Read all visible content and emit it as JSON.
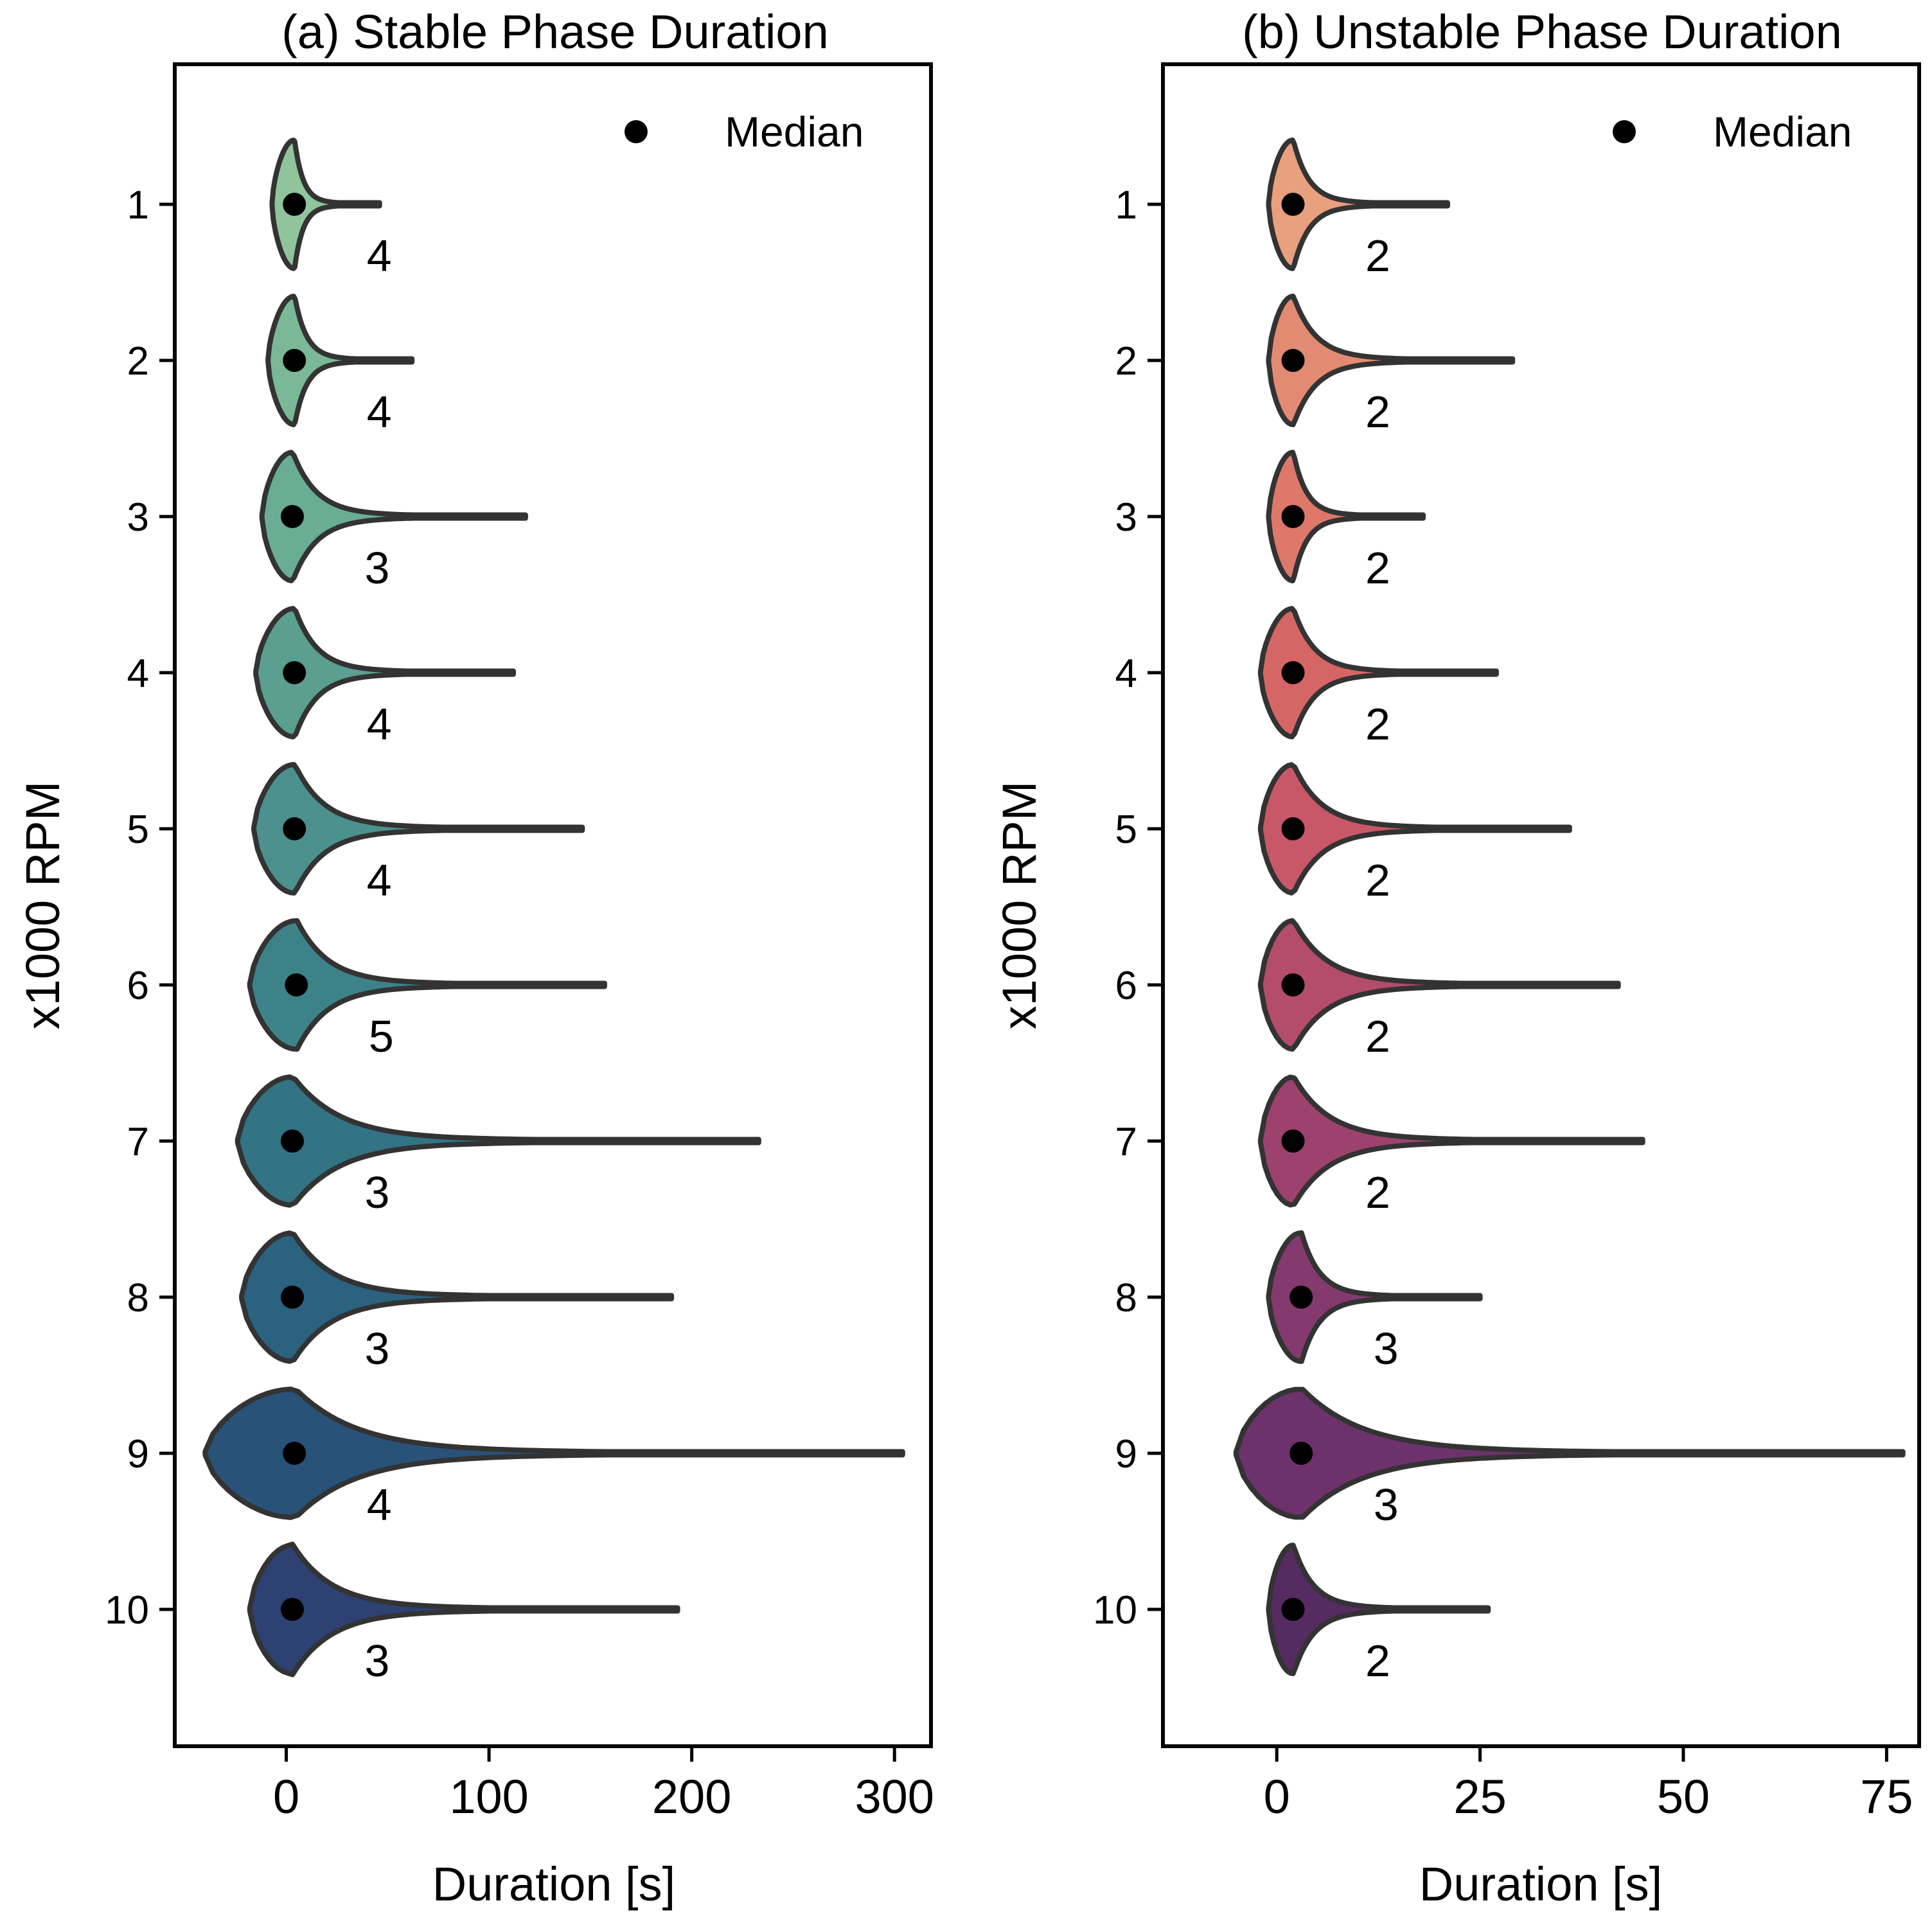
{
  "chart_data": [
    {
      "type": "violin",
      "orientation": "horizontal",
      "title": "(a) Stable Phase Duration",
      "xlabel": "Duration [s]",
      "ylabel": "x1000 RPM",
      "xlim": [
        -55,
        318
      ],
      "xticks": [
        0,
        100,
        200,
        300
      ],
      "xtick_labels": [
        "0",
        "100",
        "200",
        "300"
      ],
      "categories": [
        "1",
        "2",
        "3",
        "4",
        "5",
        "6",
        "7",
        "8",
        "9",
        "10"
      ],
      "medians": [
        4,
        4,
        3,
        4,
        4,
        5,
        3,
        3,
        4,
        3
      ],
      "median_labels": [
        "4",
        "4",
        "3",
        "4",
        "4",
        "5",
        "3",
        "3",
        "4",
        "3"
      ],
      "min_values": [
        -7,
        -9,
        -12,
        -15,
        -16,
        -18,
        -24,
        -22,
        -40,
        -18
      ],
      "max_values": [
        46,
        62,
        118,
        112,
        146,
        157,
        233,
        190,
        304,
        193
      ],
      "colors": [
        "#8fc49c",
        "#7ab898",
        "#69ad94",
        "#5a9f90",
        "#4c918d",
        "#3e8289",
        "#327384",
        "#2a6280",
        "#295279",
        "#2d4272"
      ],
      "legend": {
        "label": "Median",
        "position": "top-right"
      }
    },
    {
      "type": "violin",
      "orientation": "horizontal",
      "title": "(b) Unstable Phase Duration",
      "xlabel": "Duration [s]",
      "ylabel": "x1000 RPM",
      "xlim": [
        -14,
        79
      ],
      "xticks": [
        0,
        25,
        50,
        75
      ],
      "xtick_labels": [
        "0",
        "25",
        "50",
        "75"
      ],
      "categories": [
        "1",
        "2",
        "3",
        "4",
        "5",
        "6",
        "7",
        "8",
        "9",
        "10"
      ],
      "medians": [
        2,
        2,
        2,
        2,
        2,
        2,
        2,
        3,
        3,
        2
      ],
      "median_labels": [
        "2",
        "2",
        "2",
        "2",
        "2",
        "2",
        "2",
        "3",
        "3",
        "2"
      ],
      "min_values": [
        -1,
        -1,
        -1,
        -2,
        -2,
        -2,
        -2,
        -1,
        -5,
        -1
      ],
      "max_values": [
        21,
        29,
        18,
        27,
        36,
        42,
        45,
        25,
        77,
        26
      ],
      "colors": [
        "#e8a07e",
        "#e38b72",
        "#de786a",
        "#d66666",
        "#c85867",
        "#b44c6b",
        "#9c426d",
        "#843a6e",
        "#6d326b",
        "#552b62"
      ],
      "legend": {
        "label": "Median",
        "position": "top-right"
      }
    }
  ]
}
